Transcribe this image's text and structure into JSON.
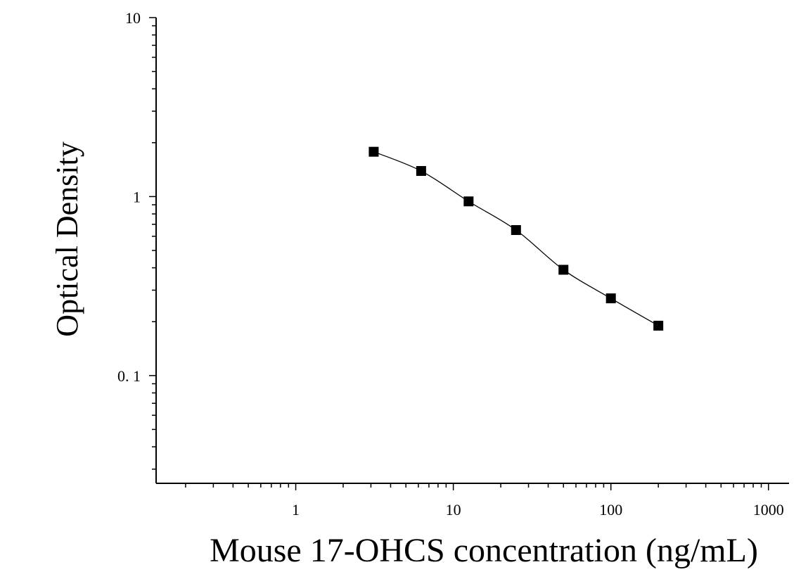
{
  "chart_data": {
    "type": "scatter",
    "xlabel": "Mouse 17-OHCS concentration (ng/mL)",
    "ylabel": "Optical Density",
    "xscale": "log",
    "yscale": "log",
    "xlim": [
      0.13,
      1350
    ],
    "ylim": [
      0.025,
      10
    ],
    "x_ticks": [
      {
        "value": 1,
        "label": "1"
      },
      {
        "value": 10,
        "label": "10"
      },
      {
        "value": 100,
        "label": "100"
      },
      {
        "value": 1000,
        "label": "1000"
      }
    ],
    "y_ticks": [
      {
        "value": 0.1,
        "label": "0. 1"
      },
      {
        "value": 1,
        "label": "1"
      },
      {
        "value": 10,
        "label": "10"
      }
    ],
    "grid": false,
    "fit_curve": true,
    "marker": "square",
    "color": "#000000",
    "series": [
      {
        "x": [
          3.125,
          6.25,
          12.5,
          25,
          50,
          100,
          200
        ],
        "y": [
          1.78,
          1.39,
          0.94,
          0.65,
          0.39,
          0.27,
          0.19
        ]
      }
    ]
  }
}
